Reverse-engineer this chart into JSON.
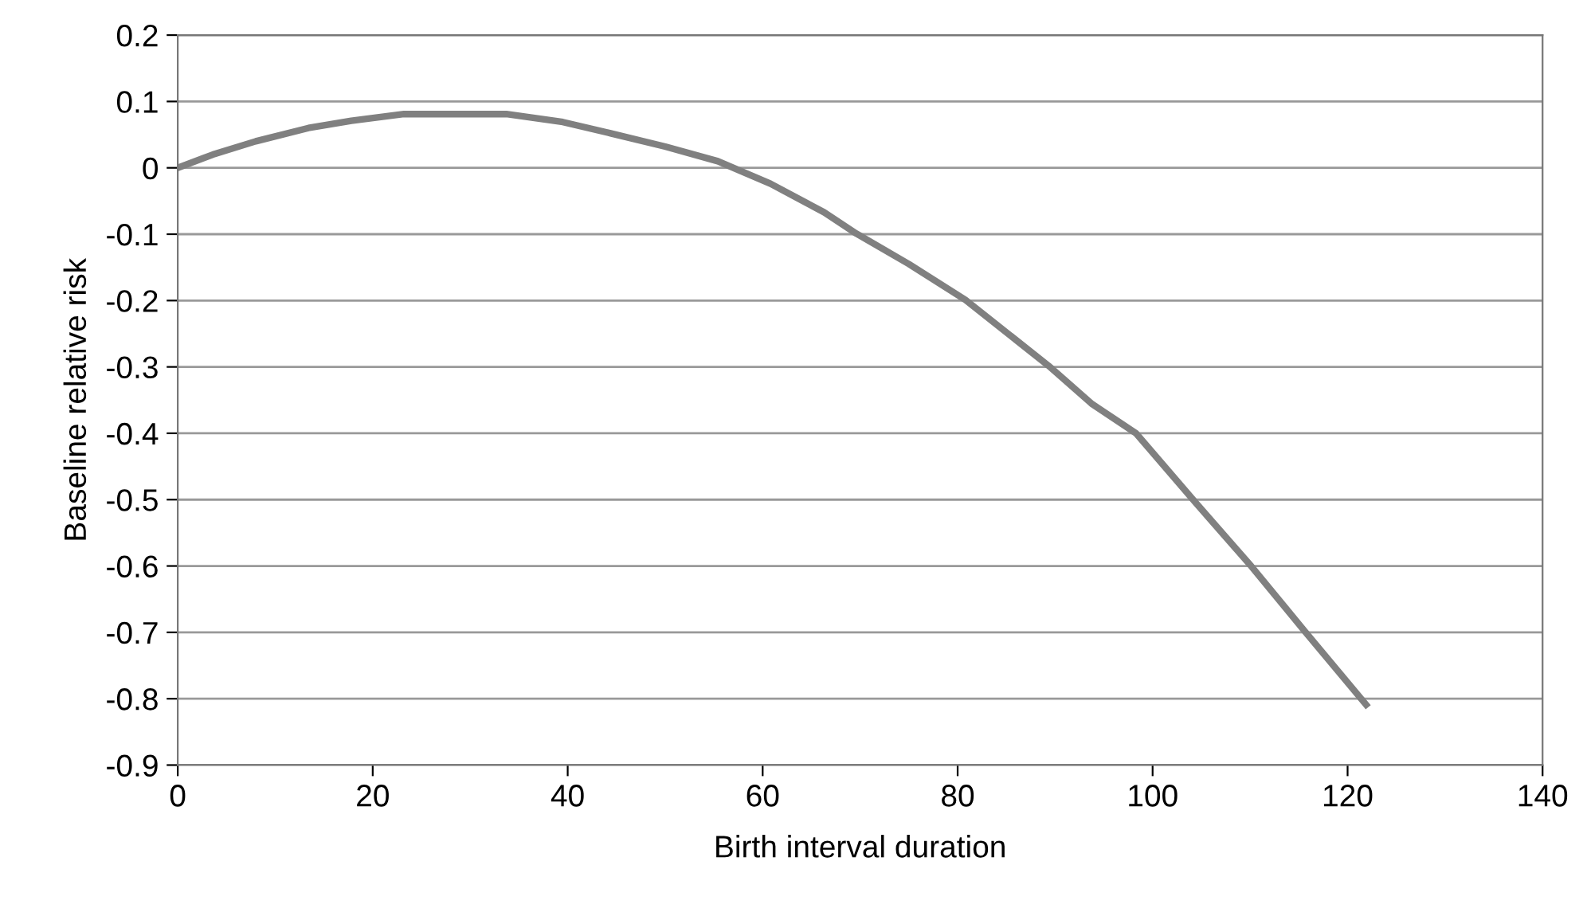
{
  "chart_data": {
    "type": "line",
    "xlabel": "Birth interval duration",
    "ylabel": "Baseline relative risk",
    "x": [
      0,
      3.6,
      8,
      13.4,
      17.8,
      23.2,
      33.7,
      39.5,
      44.4,
      50,
      55.4,
      60.8,
      66.3,
      69.6,
      75,
      80.8,
      89.3,
      93.8,
      98.3,
      104.5,
      110.1,
      115.7,
      121.9
    ],
    "series": [
      {
        "color": "#808080",
        "values": [
          0,
          0.02,
          0.04,
          0.06,
          0.071,
          0.081,
          0.081,
          0.069,
          0.052,
          0.032,
          0.01,
          -0.024,
          -0.067,
          -0.099,
          -0.145,
          -0.199,
          -0.298,
          -0.356,
          -0.4,
          -0.506,
          -0.6,
          -0.7,
          -0.809
        ]
      }
    ],
    "xlim": [
      0,
      140
    ],
    "xticks": [
      0,
      20,
      40,
      60,
      80,
      100,
      120,
      140
    ],
    "ylim": [
      -0.9,
      0.2
    ],
    "yticks": [
      -0.9,
      -0.8,
      -0.7,
      -0.6,
      -0.5,
      -0.4,
      -0.3,
      -0.2,
      -0.1,
      0,
      0.1,
      0.2
    ],
    "grid": "y",
    "marker": "none",
    "line_style": "solid"
  }
}
